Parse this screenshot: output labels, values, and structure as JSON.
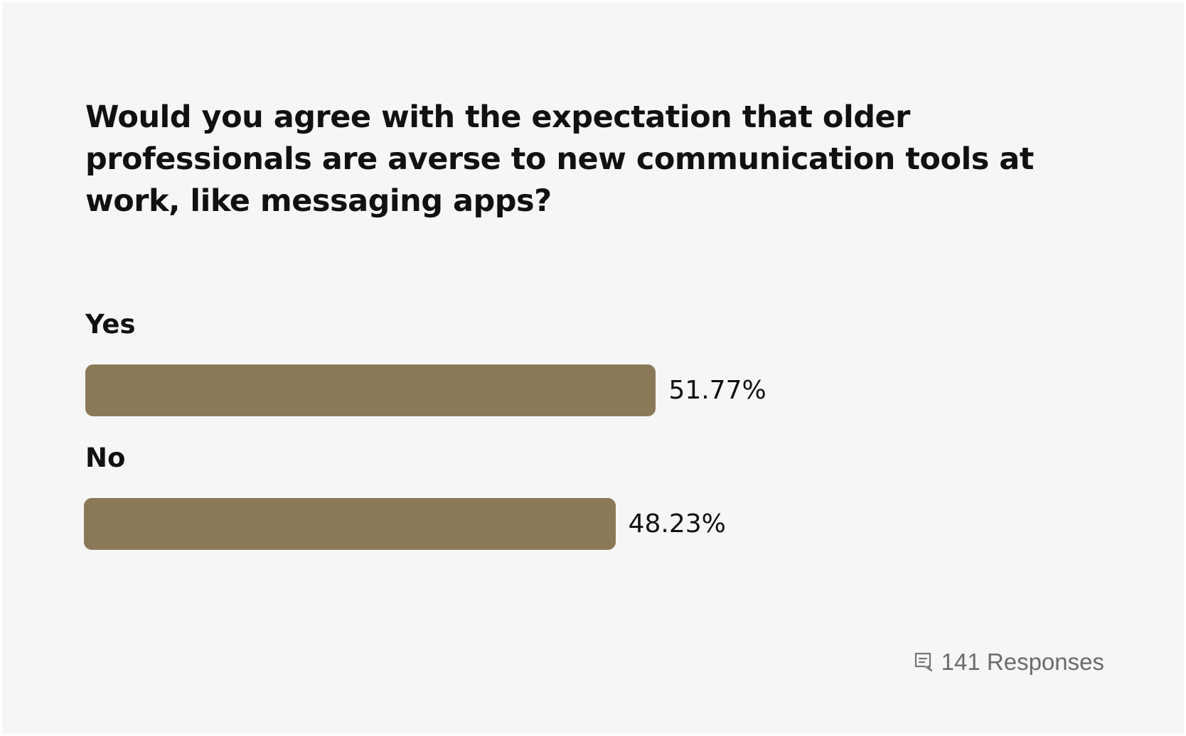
{
  "question": {
    "title": "Would you agree with the expectation that older professionals are averse to new communication tools at work, like messaging apps?"
  },
  "chart_data": {
    "type": "bar",
    "orientation": "horizontal",
    "categories": [
      "Yes",
      "No"
    ],
    "values": [
      51.77,
      48.23
    ],
    "value_labels": [
      "51.77%",
      "48.23%"
    ],
    "bar_color": "#8a7959",
    "grid": false
  },
  "footer": {
    "icon": "comment-icon",
    "responses_label": "141 Responses"
  },
  "colors": {
    "background": "#f6f6f6",
    "bar": "#8a7959",
    "text": "#111111",
    "muted": "#6b6b6b"
  }
}
